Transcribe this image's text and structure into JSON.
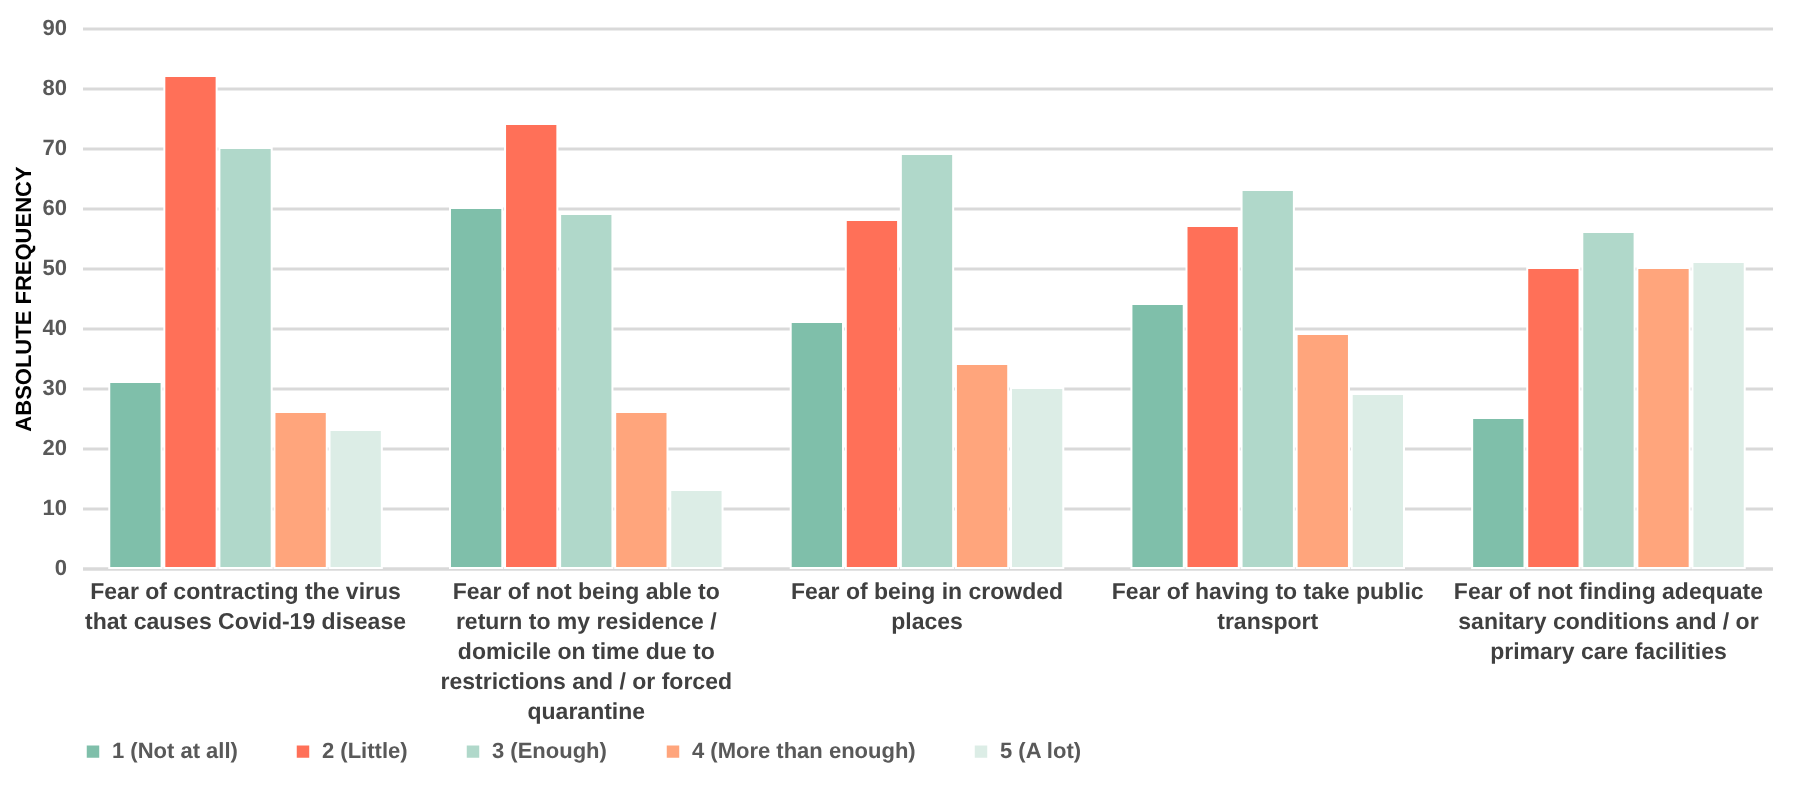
{
  "chart_data": {
    "type": "bar",
    "ylabel": "ABSOLUTE FREQUENCY",
    "categories": [
      "Fear of contracting the virus that causes Covid-19 disease",
      "Fear of not being able to return to my residence / domicile on time due to restrictions and / or forced quarantine",
      "Fear of being in crowded places",
      "Fear of having to take public transport",
      "Fear of not finding adequate sanitary conditions and / or primary care facilities"
    ],
    "series": [
      {
        "name": "1 (Not at all)",
        "color": "#7fbfaa",
        "values": [
          31,
          60,
          41,
          44,
          25
        ]
      },
      {
        "name": "2 (Little)",
        "color": "#ff7058",
        "values": [
          82,
          74,
          58,
          57,
          50
        ]
      },
      {
        "name": "3 (Enough)",
        "color": "#b0d8ca",
        "values": [
          70,
          59,
          69,
          63,
          56
        ]
      },
      {
        "name": "4 (More than enough)",
        "color": "#ffa57c",
        "values": [
          26,
          26,
          34,
          39,
          50
        ]
      },
      {
        "name": "5 (A lot)",
        "color": "#dcede6",
        "values": [
          23,
          13,
          30,
          29,
          51
        ]
      }
    ],
    "ylim": [
      0,
      90
    ],
    "yticks": [
      0,
      10,
      20,
      30,
      40,
      50,
      60,
      70,
      80,
      90
    ],
    "grid": "y",
    "legend": "bottom"
  }
}
